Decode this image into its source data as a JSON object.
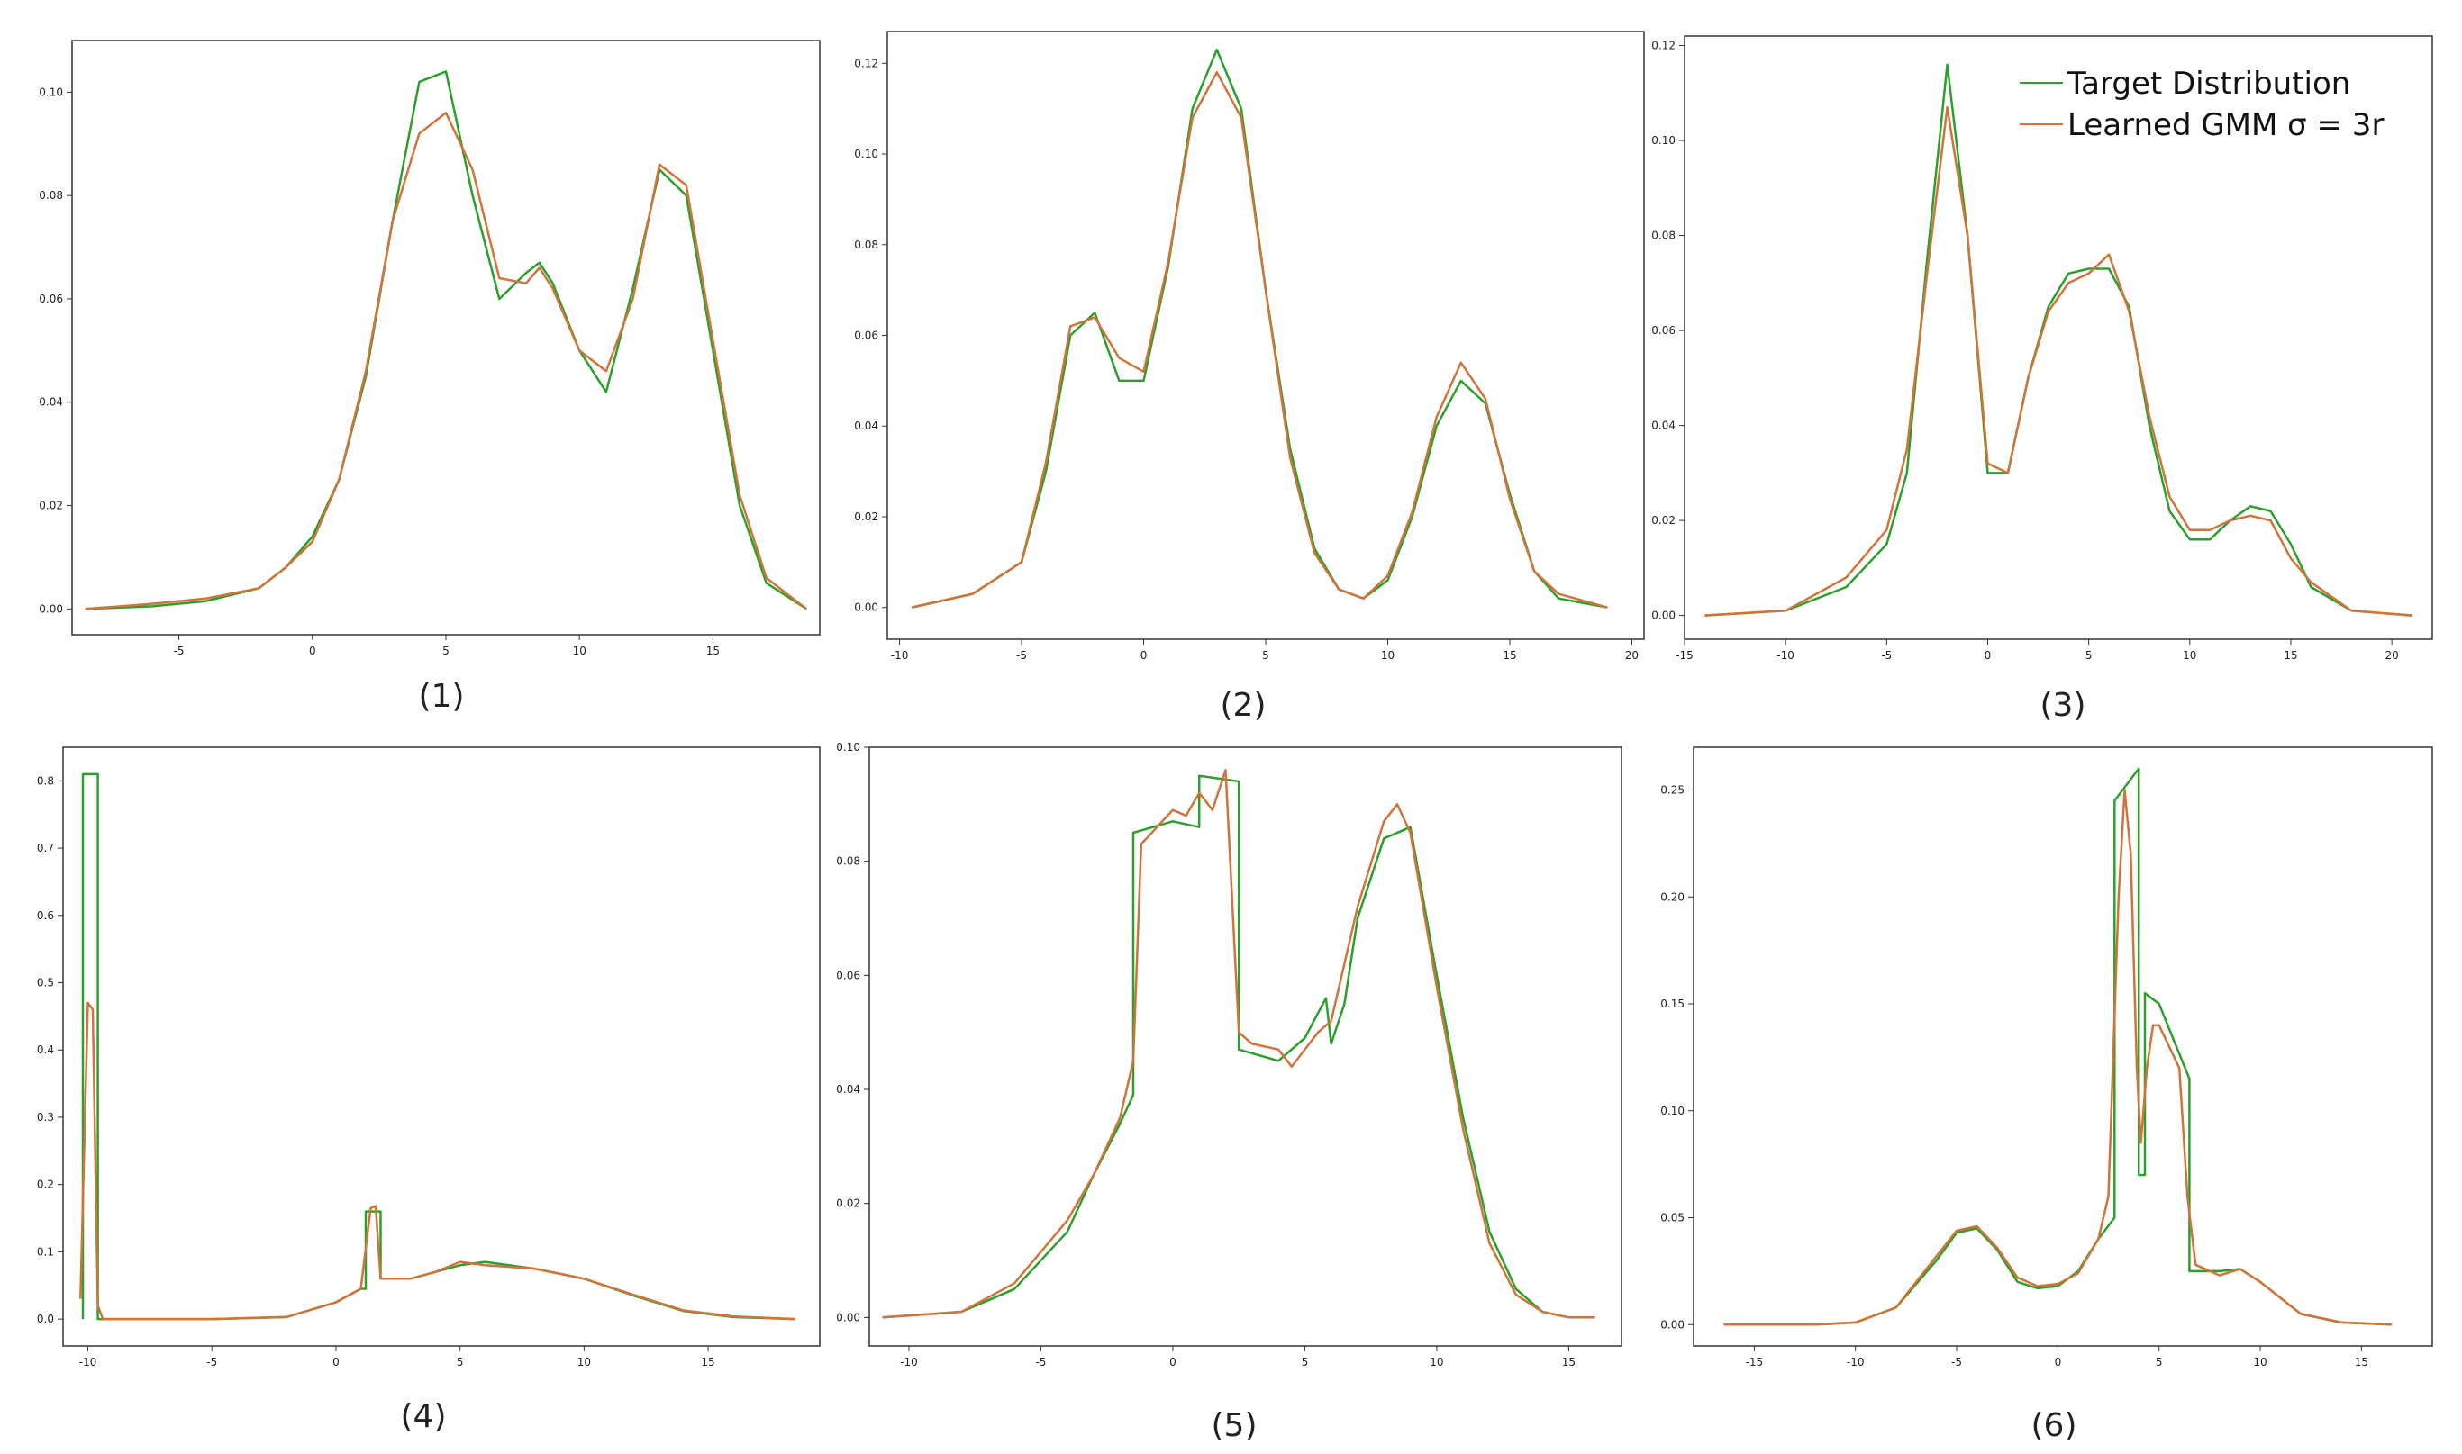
{
  "figure": {
    "legend": {
      "placement": "top-right of panel (3)",
      "entries": [
        {
          "label": "Target Distribution",
          "color": "#2ca02c"
        },
        {
          "label": "Learned GMM σ = 3r",
          "color": "#d0743c"
        }
      ]
    },
    "colors": {
      "target": "#2ca02c",
      "learned": "#d0743c",
      "frame": "#333333"
    }
  },
  "chart_data": [
    {
      "panel": "(1)",
      "type": "line",
      "xlim": [
        -9,
        19
      ],
      "ylim": [
        -0.005,
        0.11
      ],
      "xticks": [
        -5,
        0,
        5,
        10,
        15
      ],
      "yticks": [
        0.0,
        0.02,
        0.04,
        0.06,
        0.08,
        0.1
      ],
      "ytick_labels": [
        "0.00",
        "0.02",
        "0.04",
        "0.06",
        "0.08",
        "0.10"
      ],
      "series": [
        {
          "name": "Target Distribution",
          "color": "#2ca02c",
          "x": [
            -8.5,
            -6,
            -4,
            -2,
            -1,
            0,
            1,
            2,
            3,
            4,
            5,
            6,
            7,
            8,
            8.5,
            9,
            10,
            11,
            12,
            13,
            14,
            15,
            16,
            17,
            18.5
          ],
          "y": [
            0.0,
            0.0005,
            0.0015,
            0.004,
            0.008,
            0.014,
            0.025,
            0.045,
            0.075,
            0.102,
            0.104,
            0.08,
            0.06,
            0.065,
            0.067,
            0.063,
            0.05,
            0.042,
            0.062,
            0.085,
            0.08,
            0.05,
            0.02,
            0.005,
            0.0
          ]
        },
        {
          "name": "Learned GMM σ = 3r",
          "color": "#d0743c",
          "x": [
            -8.5,
            -6,
            -4,
            -2,
            -1,
            0,
            1,
            2,
            3,
            4,
            5,
            6,
            7,
            8,
            8.5,
            9,
            10,
            11,
            12,
            13,
            14,
            15,
            16,
            17,
            18.5
          ],
          "y": [
            0.0,
            0.001,
            0.002,
            0.004,
            0.008,
            0.013,
            0.025,
            0.046,
            0.075,
            0.092,
            0.096,
            0.085,
            0.064,
            0.063,
            0.066,
            0.062,
            0.05,
            0.046,
            0.06,
            0.086,
            0.082,
            0.052,
            0.022,
            0.006,
            0.0
          ]
        }
      ]
    },
    {
      "panel": "(2)",
      "type": "line",
      "xlim": [
        -10.5,
        20.5
      ],
      "ylim": [
        -0.007,
        0.127
      ],
      "xticks": [
        -10,
        -5,
        0,
        5,
        10,
        15,
        20
      ],
      "yticks": [
        0.0,
        0.02,
        0.04,
        0.06,
        0.08,
        0.1,
        0.12
      ],
      "ytick_labels": [
        "0.00",
        "0.02",
        "0.04",
        "0.06",
        "0.08",
        "0.10",
        "0.12"
      ],
      "series": [
        {
          "name": "Target Distribution",
          "color": "#2ca02c",
          "x": [
            -9.5,
            -7,
            -5,
            -4,
            -3,
            -2,
            -1,
            0,
            1,
            2,
            3,
            4,
            5,
            6,
            7,
            8,
            9,
            10,
            11,
            12,
            13,
            14,
            15,
            16,
            17,
            19
          ],
          "y": [
            0.0,
            0.003,
            0.01,
            0.03,
            0.06,
            0.065,
            0.05,
            0.05,
            0.075,
            0.11,
            0.123,
            0.11,
            0.07,
            0.035,
            0.013,
            0.004,
            0.002,
            0.006,
            0.02,
            0.04,
            0.05,
            0.045,
            0.025,
            0.008,
            0.002,
            0.0
          ]
        },
        {
          "name": "Learned GMM σ = 3r",
          "color": "#d0743c",
          "x": [
            -9.5,
            -7,
            -5,
            -4,
            -3,
            -2,
            -1,
            0,
            1,
            2,
            3,
            4,
            5,
            6,
            7,
            8,
            9,
            10,
            11,
            12,
            13,
            14,
            15,
            16,
            17,
            19
          ],
          "y": [
            0.0,
            0.003,
            0.01,
            0.032,
            0.062,
            0.064,
            0.055,
            0.052,
            0.076,
            0.108,
            0.118,
            0.108,
            0.07,
            0.033,
            0.012,
            0.004,
            0.002,
            0.007,
            0.021,
            0.042,
            0.054,
            0.046,
            0.024,
            0.008,
            0.003,
            0.0
          ]
        }
      ]
    },
    {
      "panel": "(3)",
      "type": "line",
      "xlim": [
        -15,
        22
      ],
      "ylim": [
        -0.005,
        0.122
      ],
      "xticks": [
        -15,
        -10,
        -5,
        0,
        5,
        10,
        15,
        20
      ],
      "yticks": [
        0.0,
        0.02,
        0.04,
        0.06,
        0.08,
        0.1,
        0.12
      ],
      "ytick_labels": [
        "0.00",
        "0.02",
        "0.04",
        "0.06",
        "0.08",
        "0.10",
        "0.12"
      ],
      "series": [
        {
          "name": "Target Distribution",
          "color": "#2ca02c",
          "x": [
            -14,
            -10,
            -7,
            -5,
            -4,
            -3,
            -2,
            -1,
            0,
            1,
            2,
            3,
            4,
            5,
            6,
            7,
            8,
            9,
            10,
            11,
            12,
            13,
            14,
            15,
            16,
            18,
            21
          ],
          "y": [
            0.0,
            0.001,
            0.006,
            0.015,
            0.03,
            0.075,
            0.116,
            0.08,
            0.03,
            0.03,
            0.05,
            0.065,
            0.072,
            0.073,
            0.073,
            0.065,
            0.04,
            0.022,
            0.016,
            0.016,
            0.02,
            0.023,
            0.022,
            0.015,
            0.006,
            0.001,
            0.0
          ]
        },
        {
          "name": "Learned GMM σ = 3r",
          "color": "#d0743c",
          "x": [
            -14,
            -10,
            -7,
            -5,
            -4,
            -3,
            -2,
            -1,
            0,
            1,
            2,
            3,
            4,
            5,
            6,
            7,
            8,
            9,
            10,
            11,
            12,
            13,
            14,
            15,
            16,
            18,
            21
          ],
          "y": [
            0.0,
            0.001,
            0.008,
            0.018,
            0.035,
            0.072,
            0.107,
            0.08,
            0.032,
            0.03,
            0.05,
            0.064,
            0.07,
            0.072,
            0.076,
            0.064,
            0.042,
            0.025,
            0.018,
            0.018,
            0.02,
            0.021,
            0.02,
            0.012,
            0.007,
            0.001,
            0.0
          ]
        }
      ]
    },
    {
      "panel": "(4)",
      "type": "line",
      "xlim": [
        -11,
        19.5
      ],
      "ylim": [
        -0.04,
        0.85
      ],
      "xticks": [
        -10,
        -5,
        0,
        5,
        10,
        15
      ],
      "yticks": [
        0.0,
        0.1,
        0.2,
        0.3,
        0.4,
        0.5,
        0.6,
        0.7,
        0.8
      ],
      "ytick_labels": [
        "0.0",
        "0.1",
        "0.2",
        "0.3",
        "0.4",
        "0.5",
        "0.6",
        "0.7",
        "0.8"
      ],
      "series": [
        {
          "name": "Target Distribution",
          "color": "#2ca02c",
          "x": [
            -10.2,
            -10.2,
            -9.6,
            -9.6,
            -5,
            -2,
            0,
            1,
            1.2,
            1.2,
            1.8,
            1.8,
            3,
            4,
            5,
            6,
            8,
            10,
            12,
            14,
            16,
            18.5
          ],
          "y": [
            0.0,
            0.81,
            0.81,
            0.0,
            0.0,
            0.003,
            0.025,
            0.045,
            0.045,
            0.16,
            0.16,
            0.06,
            0.06,
            0.07,
            0.08,
            0.085,
            0.075,
            0.06,
            0.035,
            0.012,
            0.003,
            0.0
          ]
        },
        {
          "name": "Learned GMM σ = 3r",
          "color": "#d0743c",
          "x": [
            -10.3,
            -10.0,
            -9.8,
            -9.6,
            -9.4,
            -5,
            -2,
            0,
            1,
            1.4,
            1.6,
            1.8,
            2.2,
            3,
            4,
            5,
            6,
            8,
            10,
            12,
            14,
            16,
            18.5
          ],
          "y": [
            0.03,
            0.47,
            0.46,
            0.02,
            0.0,
            0.0,
            0.003,
            0.025,
            0.045,
            0.165,
            0.168,
            0.06,
            0.06,
            0.06,
            0.07,
            0.085,
            0.08,
            0.075,
            0.06,
            0.036,
            0.013,
            0.004,
            0.0
          ]
        }
      ]
    },
    {
      "panel": "(5)",
      "type": "line",
      "xlim": [
        -11.5,
        17
      ],
      "ylim": [
        -0.005,
        0.1
      ],
      "xticks": [
        -10,
        -5,
        0,
        5,
        10,
        15
      ],
      "yticks": [
        0.0,
        0.02,
        0.04,
        0.06,
        0.08,
        0.1
      ],
      "ytick_labels": [
        "0.00",
        "0.02",
        "0.04",
        "0.06",
        "0.08",
        "0.10"
      ],
      "series": [
        {
          "name": "Target Distribution",
          "color": "#2ca02c",
          "x": [
            -11,
            -8,
            -6,
            -4,
            -3,
            -2,
            -1.5,
            -1.5,
            0,
            1,
            1,
            2.5,
            2.5,
            4,
            5,
            5.8,
            6,
            6.5,
            7,
            8,
            9,
            10,
            11,
            12,
            13,
            14,
            15,
            16
          ],
          "y": [
            0.0,
            0.001,
            0.005,
            0.015,
            0.025,
            0.034,
            0.039,
            0.085,
            0.087,
            0.086,
            0.095,
            0.094,
            0.047,
            0.045,
            0.049,
            0.056,
            0.048,
            0.055,
            0.07,
            0.084,
            0.086,
            0.06,
            0.035,
            0.015,
            0.005,
            0.001,
            0.0,
            0.0
          ]
        },
        {
          "name": "Learned GMM σ = 3r",
          "color": "#d0743c",
          "x": [
            -11,
            -8,
            -6,
            -4,
            -3,
            -2,
            -1.5,
            -1.2,
            0,
            0.5,
            1,
            1.5,
            2,
            2.5,
            3,
            4,
            4.5,
            5,
            5.5,
            6,
            7,
            8,
            8.5,
            9,
            10,
            11,
            12,
            13,
            14,
            15,
            16
          ],
          "y": [
            0.0,
            0.001,
            0.006,
            0.017,
            0.025,
            0.035,
            0.045,
            0.083,
            0.089,
            0.088,
            0.092,
            0.089,
            0.096,
            0.05,
            0.048,
            0.047,
            0.044,
            0.047,
            0.05,
            0.052,
            0.072,
            0.087,
            0.09,
            0.085,
            0.058,
            0.033,
            0.013,
            0.004,
            0.001,
            0.0,
            0.0
          ]
        }
      ]
    },
    {
      "panel": "(6)",
      "type": "line",
      "xlim": [
        -18,
        18.5
      ],
      "ylim": [
        -0.01,
        0.27
      ],
      "xticks": [
        -15,
        -10,
        -5,
        0,
        5,
        10,
        15
      ],
      "yticks": [
        0.0,
        0.05,
        0.1,
        0.15,
        0.2,
        0.25
      ],
      "ytick_labels": [
        "0.00",
        "0.05",
        "0.10",
        "0.15",
        "0.20",
        "0.25"
      ],
      "series": [
        {
          "name": "Target Distribution",
          "color": "#2ca02c",
          "x": [
            -16.5,
            -12,
            -10,
            -8,
            -6,
            -5,
            -4,
            -3,
            -2,
            -1,
            0,
            1,
            2,
            2.8,
            2.8,
            4,
            4,
            4.3,
            4.3,
            5,
            6.5,
            6.5,
            8,
            9,
            10,
            12,
            14,
            16.5
          ],
          "y": [
            0.0,
            0.0,
            0.001,
            0.008,
            0.03,
            0.043,
            0.045,
            0.035,
            0.02,
            0.017,
            0.018,
            0.025,
            0.04,
            0.05,
            0.245,
            0.26,
            0.07,
            0.07,
            0.155,
            0.15,
            0.115,
            0.025,
            0.025,
            0.026,
            0.02,
            0.005,
            0.001,
            0.0
          ]
        },
        {
          "name": "Learned GMM σ = 3r",
          "color": "#d0743c",
          "x": [
            -16.5,
            -12,
            -10,
            -8,
            -6,
            -5,
            -4,
            -3,
            -2,
            -1,
            0,
            1,
            2,
            2.5,
            3,
            3.3,
            3.6,
            3.9,
            4.1,
            4.4,
            4.7,
            5,
            6,
            6.4,
            6.8,
            8,
            9,
            10,
            12,
            14,
            16.5
          ],
          "y": [
            0.0,
            0.0,
            0.001,
            0.008,
            0.032,
            0.044,
            0.046,
            0.036,
            0.022,
            0.018,
            0.019,
            0.024,
            0.04,
            0.06,
            0.2,
            0.25,
            0.22,
            0.12,
            0.085,
            0.12,
            0.14,
            0.14,
            0.12,
            0.06,
            0.028,
            0.023,
            0.026,
            0.02,
            0.005,
            0.001,
            0.0
          ]
        }
      ]
    }
  ]
}
